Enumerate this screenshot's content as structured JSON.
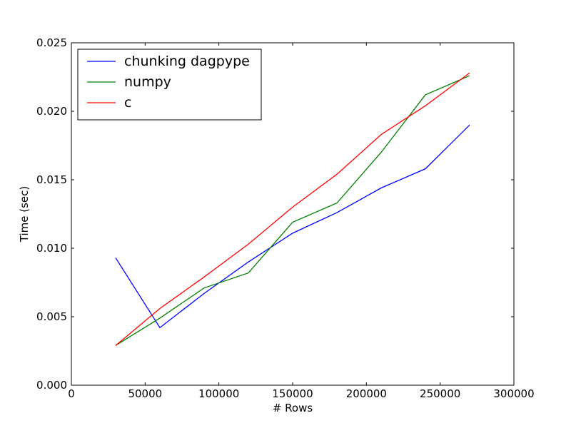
{
  "chart_data": {
    "type": "line",
    "title": "",
    "xlabel": "# Rows",
    "ylabel": "Time (sec)",
    "xlim": [
      0,
      300000
    ],
    "ylim": [
      0,
      0.025
    ],
    "x_ticks": [
      0,
      50000,
      100000,
      150000,
      200000,
      250000,
      300000
    ],
    "x_tick_labels": [
      "0",
      "50000",
      "100000",
      "150000",
      "200000",
      "250000",
      "300000"
    ],
    "y_ticks": [
      0,
      0.005,
      0.01,
      0.015,
      0.02,
      0.025
    ],
    "y_tick_labels": [
      "0.000",
      "0.005",
      "0.010",
      "0.015",
      "0.020",
      "0.025"
    ],
    "grid": false,
    "legend_position": "top-left",
    "series": [
      {
        "name": "chunking dagpype",
        "color": "#0000ff",
        "x": [
          30000,
          60000,
          90000,
          120000,
          150000,
          180000,
          210000,
          240000,
          270000
        ],
        "values": [
          0.0093,
          0.0042,
          0.0067,
          0.009,
          0.0111,
          0.0126,
          0.0144,
          0.0158,
          0.019
        ]
      },
      {
        "name": "numpy",
        "color": "#008000",
        "x": [
          30000,
          60000,
          90000,
          120000,
          150000,
          180000,
          210000,
          240000,
          270000
        ],
        "values": [
          0.0029,
          0.0049,
          0.0071,
          0.0082,
          0.0119,
          0.0133,
          0.017,
          0.0212,
          0.0226
        ]
      },
      {
        "name": "c",
        "color": "#ff0000",
        "x": [
          30000,
          60000,
          90000,
          120000,
          150000,
          180000,
          210000,
          240000,
          270000
        ],
        "values": [
          0.0029,
          0.0056,
          0.0079,
          0.0103,
          0.013,
          0.0154,
          0.0183,
          0.0204,
          0.0228
        ]
      }
    ]
  }
}
